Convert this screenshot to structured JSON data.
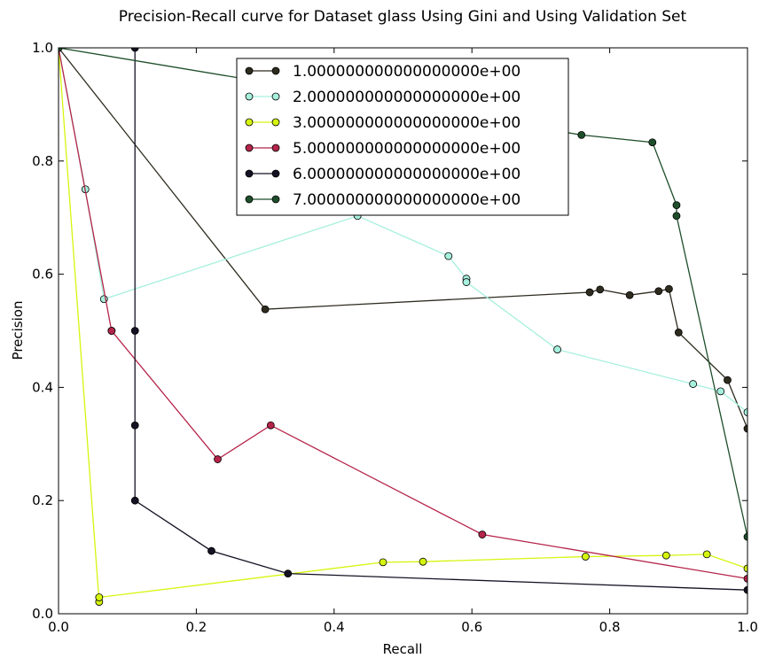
{
  "chart_data": {
    "type": "line",
    "title": "Precision-Recall curve for Dataset glass Using Gini and Using Validation Set",
    "xlabel": "Recall",
    "ylabel": "Precision",
    "xlim": [
      0.0,
      1.0
    ],
    "ylim": [
      0.0,
      1.0
    ],
    "xticks": [
      "0.0",
      "0.2",
      "0.4",
      "0.6",
      "0.8",
      "1.0"
    ],
    "yticks": [
      "0.0",
      "0.2",
      "0.4",
      "0.6",
      "0.8",
      "1.0"
    ],
    "grid": false,
    "legend_position": "top-center",
    "series": [
      {
        "name": "1.000000000000000000e+00",
        "color": "#2e2b1f",
        "x": [
          0.0,
          0.3,
          0.771,
          0.786,
          0.829,
          0.871,
          0.886,
          0.9,
          0.971,
          1.0
        ],
        "y": [
          1.0,
          0.538,
          0.568,
          0.573,
          0.563,
          0.57,
          0.574,
          0.497,
          0.413,
          0.327
        ]
      },
      {
        "name": "2.000000000000000000e+00",
        "color": "#a6f0dd",
        "x": [
          0.0,
          0.039,
          0.066,
          0.434,
          0.566,
          0.592,
          0.592,
          0.724,
          0.921,
          0.961,
          1.0
        ],
        "y": [
          1.0,
          0.75,
          0.556,
          0.703,
          0.632,
          0.592,
          0.586,
          0.467,
          0.406,
          0.393,
          0.356
        ]
      },
      {
        "name": "3.000000000000000000e+00",
        "color": "#d6f50e",
        "x": [
          0.0,
          0.059,
          0.059,
          0.471,
          0.529,
          0.765,
          0.882,
          0.941,
          1.0
        ],
        "y": [
          1.0,
          0.021,
          0.029,
          0.091,
          0.092,
          0.101,
          0.103,
          0.105,
          0.08
        ]
      },
      {
        "name": "5.000000000000000000e+00",
        "color": "#b5244a",
        "x": [
          0.0,
          0.077,
          0.077,
          0.231,
          0.308,
          0.615,
          1.0
        ],
        "y": [
          1.0,
          0.5,
          0.5,
          0.273,
          0.333,
          0.14,
          0.062
        ]
      },
      {
        "name": "6.000000000000000000e+00",
        "color": "#141223",
        "x": [
          0.111,
          0.111,
          0.111,
          0.111,
          0.222,
          0.333,
          1.0
        ],
        "y": [
          1.0,
          0.5,
          0.333,
          0.2,
          0.111,
          0.071,
          0.042
        ]
      },
      {
        "name": "7.000000000000000000e+00",
        "color": "#1e4e2a",
        "x": [
          0.0,
          0.759,
          0.862,
          0.897,
          0.897,
          1.0
        ],
        "y": [
          1.0,
          0.846,
          0.833,
          0.722,
          0.703,
          0.136
        ]
      }
    ]
  }
}
